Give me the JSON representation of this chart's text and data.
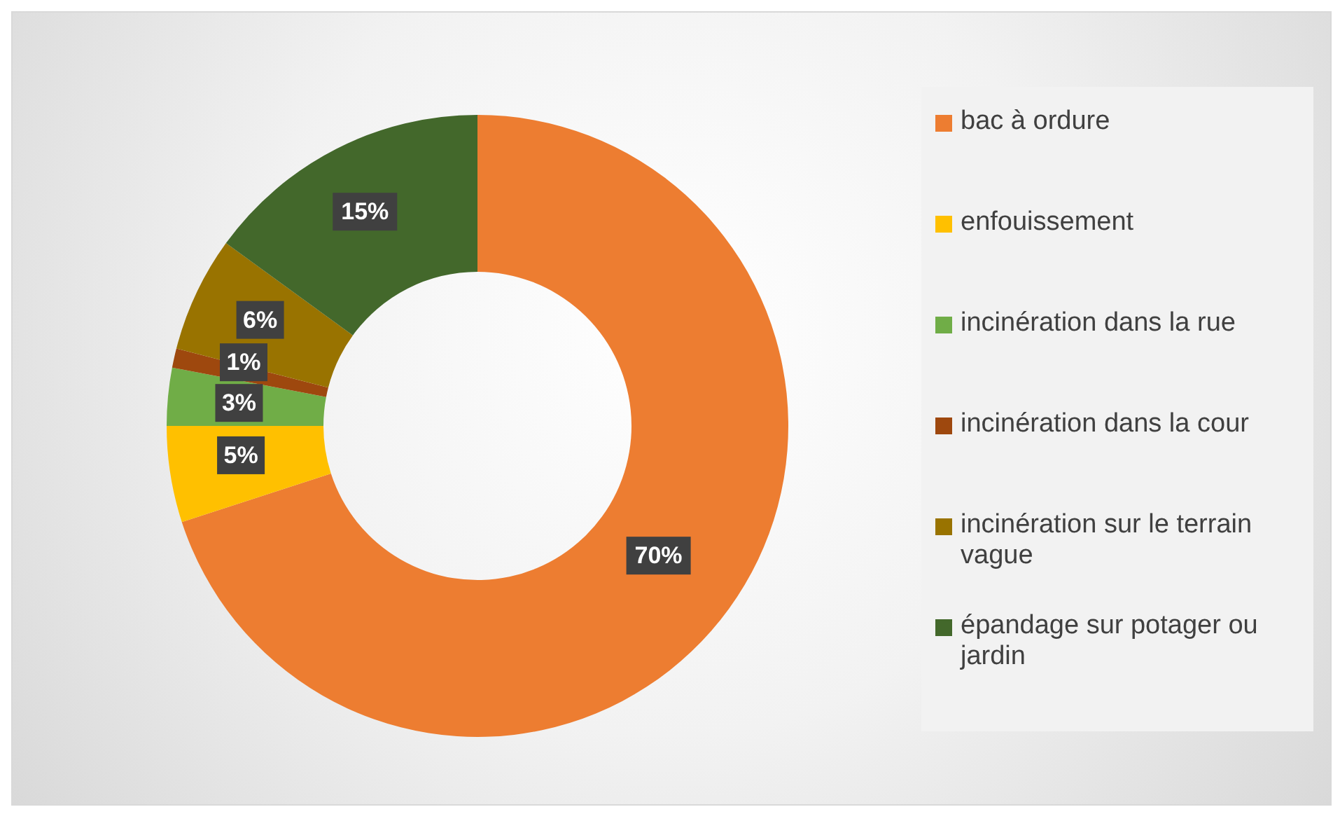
{
  "chart_data": {
    "type": "donut",
    "categories": [
      "bac à ordure",
      "enfouissement",
      "incinération dans la rue",
      "incinération dans la cour",
      "incinération sur le terrain vague",
      "épandage sur potager ou jardin"
    ],
    "values": [
      70,
      5,
      3,
      1,
      6,
      15
    ],
    "colors": [
      "#ed7d31",
      "#ffc000",
      "#70ad47",
      "#9e480e",
      "#997300",
      "#43682b"
    ],
    "value_labels": [
      "70%",
      "5%",
      "3%",
      "1%",
      "6%",
      "15%"
    ],
    "legend": "right"
  }
}
